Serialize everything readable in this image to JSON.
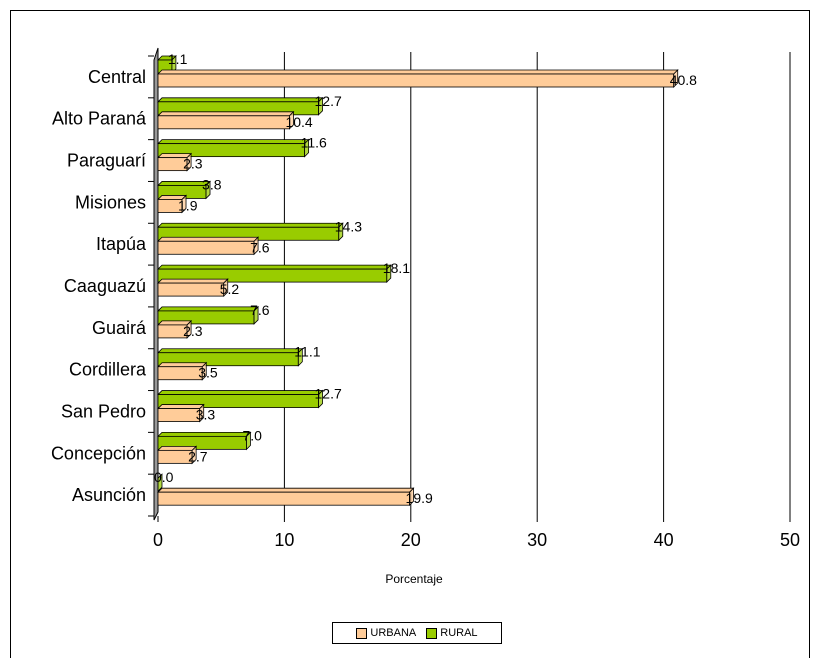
{
  "chart_data": {
    "type": "bar",
    "orientation": "horizontal",
    "categories": [
      "Central",
      "Alto Paraná",
      "Paraguarí",
      "Misiones",
      "Itapúa",
      "Caaguazú",
      "Guairá",
      "Cordillera",
      "San Pedro",
      "Concepción",
      "Asunción"
    ],
    "series": [
      {
        "name": "RURAL",
        "color": "#99cc00",
        "values": [
          1.1,
          12.7,
          11.6,
          3.8,
          14.3,
          18.1,
          7.6,
          11.1,
          12.7,
          7.0,
          0.0
        ],
        "labels": [
          "1.1",
          "12.7",
          "11.6",
          "3.8",
          "14.3",
          "18.1",
          "7.6",
          "11.1",
          "12.7",
          "7.0",
          "0.0"
        ]
      },
      {
        "name": "URBANA",
        "color": "#ffcc99",
        "values": [
          40.8,
          10.4,
          2.3,
          1.9,
          7.6,
          5.2,
          2.3,
          3.5,
          3.3,
          2.7,
          19.9
        ],
        "labels": [
          "40.8",
          "10.4",
          "2.3",
          "1.9",
          "7.6",
          "5.2",
          "2.3",
          "3.5",
          "3.3",
          "2.7",
          "19.9"
        ]
      }
    ],
    "legend_order": [
      "URBANA",
      "RURAL"
    ],
    "xlabel": "Porcentaje",
    "ylabel": "",
    "xlim": [
      0,
      50
    ],
    "xticks": [
      0,
      10,
      20,
      30,
      40,
      50
    ],
    "grid": true,
    "legend_position": "bottom"
  }
}
